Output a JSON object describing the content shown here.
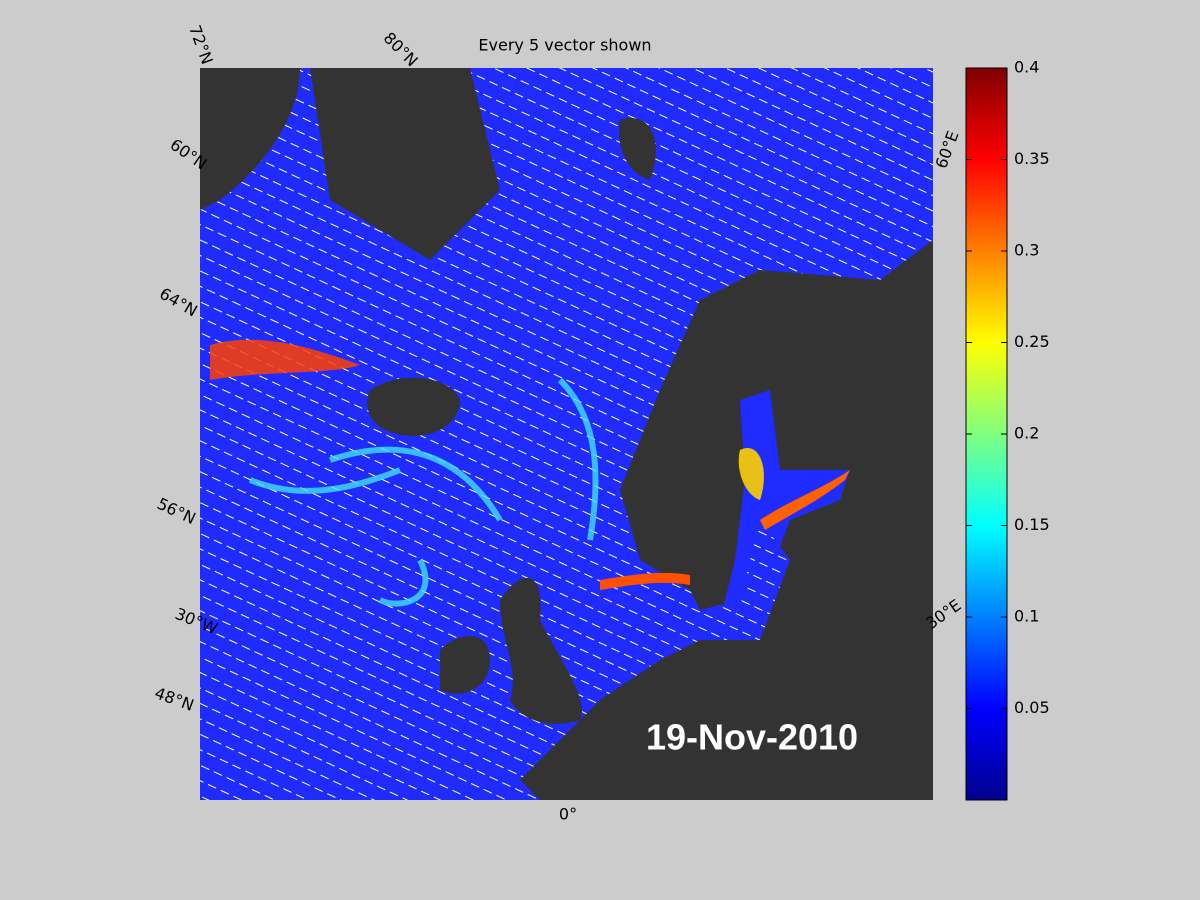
{
  "title": "Every 5 vector shown",
  "date": "19-Nov-2010",
  "map_labels": [
    "72°N",
    "80°N",
    "60°N",
    "64°N",
    "56°N",
    "30°W",
    "48°N",
    "0°",
    "60°E",
    "30°E"
  ],
  "colorbar": {
    "ylim": [
      0,
      0.4
    ],
    "yticks": [
      0.05,
      0.1,
      0.15,
      0.2,
      0.25,
      0.3,
      0.35,
      0.4
    ]
  }
}
